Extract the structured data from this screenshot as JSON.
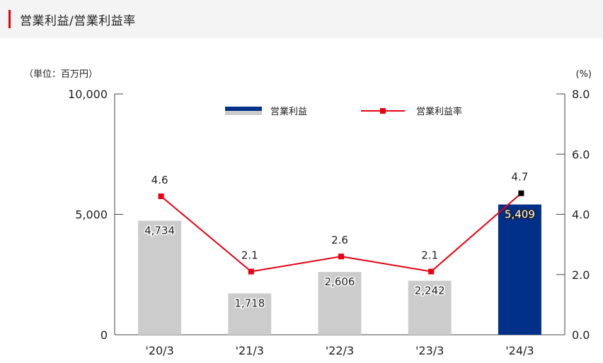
{
  "header": {
    "title": "営業利益/営業利益率"
  },
  "chart_data": {
    "type": "bar",
    "categories": [
      "'20/3",
      "'21/3",
      "'22/3",
      "'23/3",
      "'24/3"
    ],
    "series": [
      {
        "name": "営業利益",
        "kind": "bar",
        "axis": "left",
        "values": [
          4734,
          1718,
          2606,
          2242,
          5409
        ],
        "labels": [
          "4,734",
          "1,718",
          "2,606",
          "2,242",
          "5,409"
        ]
      },
      {
        "name": "営業利益率",
        "kind": "line",
        "axis": "right",
        "values": [
          4.6,
          2.1,
          2.6,
          2.1,
          4.7
        ],
        "labels": [
          "4.6",
          "2.1",
          "2.6",
          "2.1",
          "4.7"
        ]
      }
    ],
    "left_axis": {
      "unit_label": "（単位：百万円）",
      "ylim": [
        0,
        10000
      ],
      "ticks": [
        0,
        5000,
        10000
      ],
      "tick_labels": [
        "0",
        "5,000",
        "10,000"
      ]
    },
    "right_axis": {
      "unit_label": "(%)",
      "ylim": [
        0,
        8
      ],
      "ticks": [
        0,
        2,
        4,
        6,
        8
      ],
      "tick_labels": [
        "0.0",
        "2.0",
        "4.0",
        "6.0",
        "8.0"
      ]
    },
    "legend_position": "top-center",
    "colors": {
      "bar": "#cccccc",
      "bar_highlight": "#003087",
      "line": "#e60012",
      "marker_last": "#000000",
      "axis": "#444444"
    }
  }
}
